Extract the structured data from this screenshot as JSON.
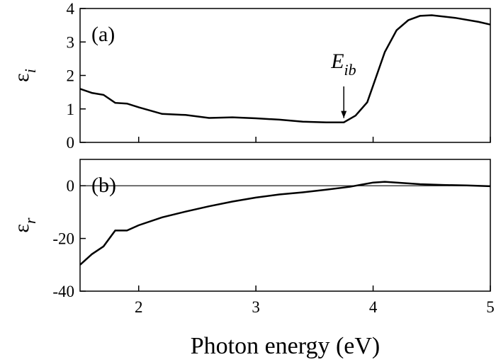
{
  "chart_data": [
    {
      "type": "line",
      "panel_label": "(a)",
      "ylabel": {
        "text": "ε",
        "subscript": "i"
      },
      "x": [
        1.5,
        1.6,
        1.7,
        1.8,
        1.9,
        2.0,
        2.2,
        2.4,
        2.6,
        2.8,
        3.0,
        3.2,
        3.4,
        3.6,
        3.75,
        3.85,
        3.95,
        4.0,
        4.1,
        4.2,
        4.3,
        4.4,
        4.5,
        4.7,
        4.9,
        5.0
      ],
      "values": [
        1.6,
        1.48,
        1.42,
        1.18,
        1.16,
        1.05,
        0.85,
        0.82,
        0.73,
        0.75,
        0.72,
        0.68,
        0.62,
        0.6,
        0.6,
        0.8,
        1.2,
        1.7,
        2.7,
        3.35,
        3.65,
        3.78,
        3.8,
        3.72,
        3.6,
        3.52
      ],
      "color": "#000000",
      "xlim": [
        1.5,
        5
      ],
      "xticks": [
        2,
        3,
        4,
        5
      ],
      "ylim": [
        0,
        4
      ],
      "yticks": [
        0,
        1,
        2,
        3,
        4
      ],
      "annotation": {
        "text": "E",
        "subscript": "ib",
        "x": 3.75,
        "y": 0.6
      }
    },
    {
      "type": "line",
      "panel_label": "(b)",
      "ylabel": {
        "text": "ε",
        "subscript": "r"
      },
      "xlabel": "Photon energy (eV)",
      "x": [
        1.5,
        1.6,
        1.7,
        1.8,
        1.9,
        2.0,
        2.2,
        2.4,
        2.6,
        2.8,
        3.0,
        3.2,
        3.4,
        3.6,
        3.8,
        4.0,
        4.1,
        4.2,
        4.4,
        4.6,
        4.8,
        5.0
      ],
      "values": [
        -30,
        -26,
        -23,
        -17,
        -17,
        -15,
        -12,
        -9.8,
        -7.8,
        -6,
        -4.5,
        -3.3,
        -2.5,
        -1.5,
        -0.4,
        1.2,
        1.5,
        1.2,
        0.6,
        0.3,
        0.1,
        -0.2
      ],
      "color": "#000000",
      "xlim": [
        1.5,
        5
      ],
      "xticks": [
        2,
        3,
        4,
        5
      ],
      "ylim": [
        -40,
        10
      ],
      "yticks": [
        -40,
        -20,
        0
      ],
      "hline": 0
    }
  ]
}
